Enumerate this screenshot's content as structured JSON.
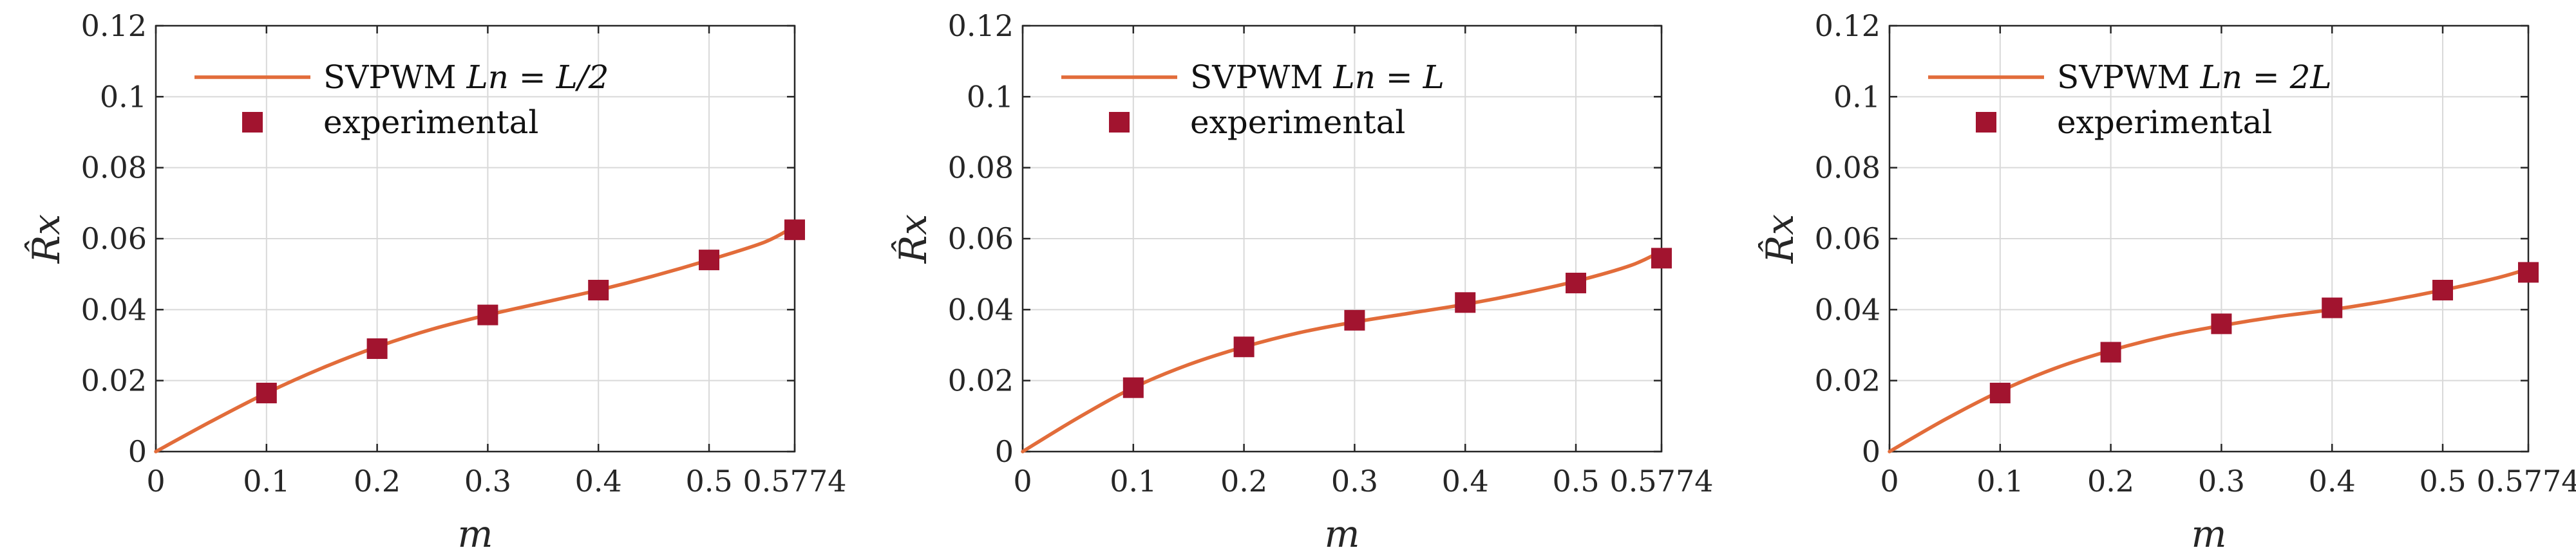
{
  "chart_data": [
    {
      "type": "line",
      "title": "",
      "xlabel": "m",
      "ylabel": "R̂x",
      "xlim": [
        0,
        0.5774
      ],
      "ylim": [
        0,
        0.12
      ],
      "xticks": [
        "0",
        "0.1",
        "0.2",
        "0.3",
        "0.4",
        "0.5",
        "0.5774"
      ],
      "yticks": [
        "0",
        "0.02",
        "0.04",
        "0.06",
        "0.08",
        "0.1",
        "0.12"
      ],
      "grid": true,
      "legend_position": "top-left",
      "series": [
        {
          "name": "SVPWM",
          "name_math": "Ln = L/2",
          "kind": "line",
          "x": [
            0,
            0.05,
            0.1,
            0.15,
            0.2,
            0.25,
            0.3,
            0.35,
            0.4,
            0.45,
            0.5,
            0.55,
            0.5774
          ],
          "values": [
            0,
            0.0085,
            0.0165,
            0.0235,
            0.0295,
            0.0345,
            0.0385,
            0.042,
            0.0455,
            0.0495,
            0.054,
            0.059,
            0.0635
          ]
        },
        {
          "name": "experimental",
          "kind": "scatter",
          "x": [
            0.1,
            0.2,
            0.3,
            0.4,
            0.5,
            0.5774
          ],
          "values": [
            0.0165,
            0.029,
            0.0385,
            0.0455,
            0.054,
            0.0625
          ]
        }
      ]
    },
    {
      "type": "line",
      "title": "",
      "xlabel": "m",
      "ylabel": "R̂x",
      "xlim": [
        0,
        0.5774
      ],
      "ylim": [
        0,
        0.12
      ],
      "xticks": [
        "0",
        "0.1",
        "0.2",
        "0.3",
        "0.4",
        "0.5",
        "0.5774"
      ],
      "yticks": [
        "0",
        "0.02",
        "0.04",
        "0.06",
        "0.08",
        "0.1",
        "0.12"
      ],
      "grid": true,
      "legend_position": "top-left",
      "series": [
        {
          "name": "SVPWM",
          "name_math": "Ln = L",
          "kind": "line",
          "x": [
            0,
            0.05,
            0.1,
            0.15,
            0.2,
            0.25,
            0.3,
            0.35,
            0.4,
            0.45,
            0.5,
            0.55,
            0.5774
          ],
          "values": [
            0,
            0.0095,
            0.018,
            0.0245,
            0.0295,
            0.0335,
            0.0365,
            0.039,
            0.0415,
            0.0445,
            0.048,
            0.0525,
            0.0565
          ]
        },
        {
          "name": "experimental",
          "kind": "scatter",
          "x": [
            0.1,
            0.2,
            0.3,
            0.4,
            0.5,
            0.5774
          ],
          "values": [
            0.018,
            0.0295,
            0.037,
            0.042,
            0.0475,
            0.0545
          ]
        }
      ]
    },
    {
      "type": "line",
      "title": "",
      "xlabel": "m",
      "ylabel": "R̂x",
      "xlim": [
        0,
        0.5774
      ],
      "ylim": [
        0,
        0.12
      ],
      "xticks": [
        "0",
        "0.1",
        "0.2",
        "0.3",
        "0.4",
        "0.5",
        "0.5774"
      ],
      "yticks": [
        "0",
        "0.02",
        "0.04",
        "0.06",
        "0.08",
        "0.1",
        "0.12"
      ],
      "grid": true,
      "legend_position": "top-left",
      "series": [
        {
          "name": "SVPWM",
          "name_math": "Ln = 2L",
          "kind": "line",
          "x": [
            0,
            0.05,
            0.1,
            0.15,
            0.2,
            0.25,
            0.3,
            0.35,
            0.4,
            0.45,
            0.5,
            0.55,
            0.5774
          ],
          "values": [
            0,
            0.009,
            0.017,
            0.0235,
            0.0285,
            0.0325,
            0.0355,
            0.038,
            0.04,
            0.0425,
            0.0455,
            0.049,
            0.0515
          ]
        },
        {
          "name": "experimental",
          "kind": "scatter",
          "x": [
            0.1,
            0.2,
            0.3,
            0.4,
            0.5,
            0.5774
          ],
          "values": [
            0.0165,
            0.028,
            0.036,
            0.0405,
            0.0455,
            0.0505
          ]
        }
      ]
    }
  ],
  "colors": {
    "line": "#E26C3A",
    "marker": "#A2142F",
    "grid": "#d9d9d9",
    "axis": "#262626"
  }
}
